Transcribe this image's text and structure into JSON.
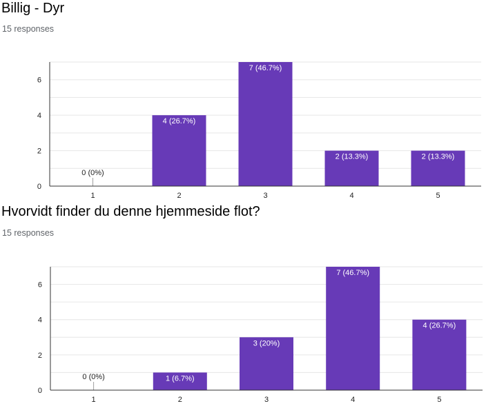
{
  "questions": [
    {
      "title": "Billig - Dyr",
      "responses": "15 responses",
      "chart_data": {
        "type": "bar",
        "title": "Billig - Dyr",
        "categories": [
          "1",
          "2",
          "3",
          "4",
          "5"
        ],
        "values": [
          0,
          4,
          7,
          2,
          2
        ],
        "labels": [
          "0 (0%)",
          "4 (26.7%)",
          "7 (46.7%)",
          "2 (13.3%)",
          "2 (13.3%)"
        ],
        "yticks": [
          0,
          2,
          4,
          6
        ],
        "ylim": [
          0,
          7
        ],
        "grid": true,
        "color": "#673ab7"
      }
    },
    {
      "title": "Hvorvidt finder du denne hjemmeside flot?",
      "responses": "15 responses",
      "chart_data": {
        "type": "bar",
        "title": "Hvorvidt finder du denne hjemmeside flot?",
        "categories": [
          "1",
          "2",
          "3",
          "4",
          "5"
        ],
        "values": [
          0,
          1,
          3,
          7,
          4
        ],
        "labels": [
          "0 (0%)",
          "1 (6.7%)",
          "3 (20%)",
          "7 (46.7%)",
          "4 (26.7%)"
        ],
        "yticks": [
          0,
          2,
          4,
          6
        ],
        "ylim": [
          0,
          7
        ],
        "grid": true,
        "color": "#673ab7"
      }
    }
  ]
}
